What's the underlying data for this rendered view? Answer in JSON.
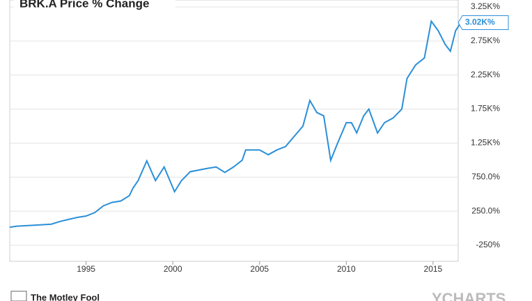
{
  "chart_data": {
    "type": "line",
    "title": "BRK.A Price % Change",
    "x": [
      1990.6,
      1991,
      1992,
      1993,
      1993.5,
      1994,
      1994.5,
      1995,
      1995.5,
      1996,
      1996.5,
      1997,
      1997.5,
      1997.7,
      1998,
      1998.5,
      1999,
      1999.5,
      2000.1,
      2000.5,
      2001,
      2002,
      2002.5,
      2003,
      2003.5,
      2004,
      2004.2,
      2005,
      2005.5,
      2006,
      2006.5,
      2007,
      2007.5,
      2007.9,
      2008.3,
      2008.7,
      2009.1,
      2009.5,
      2010,
      2010.3,
      2010.6,
      2011,
      2011.3,
      2011.8,
      2012.2,
      2012.7,
      2013.2,
      2013.5,
      2014,
      2014.5,
      2014.9,
      2015.3,
      2015.7,
      2016,
      2016.3,
      2016.6
    ],
    "series": [
      {
        "name": "BRK.A",
        "color": "#2a8fd8",
        "values": [
          15,
          30,
          45,
          60,
          100,
          130,
          160,
          180,
          230,
          330,
          380,
          400,
          480,
          588,
          700,
          990,
          700,
          900,
          537,
          700,
          830,
          880,
          900,
          820,
          900,
          1000,
          1150,
          1150,
          1080,
          1150,
          1200,
          1350,
          1500,
          1876,
          1700,
          1650,
          997,
          1250,
          1550,
          1550,
          1400,
          1650,
          1750,
          1400,
          1550,
          1620,
          1750,
          2200,
          2400,
          2500,
          3040,
          2900,
          2700,
          2600,
          2900,
          3020
        ]
      }
    ],
    "last_value_label": "3.02K%",
    "xlim": [
      1990.6,
      2016.45
    ],
    "xticks": [
      1995,
      2000,
      2005,
      2010,
      2015
    ],
    "ylim": [
      -485,
      3352
    ],
    "yticks": [
      {
        "value": -250,
        "label": "-250%"
      },
      {
        "value": 250,
        "label": "250.0%"
      },
      {
        "value": 750,
        "label": "750.0%"
      },
      {
        "value": 1250,
        "label": "1.25K%"
      },
      {
        "value": 1750,
        "label": "1.75K%"
      },
      {
        "value": 2250,
        "label": "2.25K%"
      },
      {
        "value": 2750,
        "label": "2.75K%"
      },
      {
        "value": 3250,
        "label": "3.25K%"
      }
    ],
    "grid": true,
    "footer_left": "The Motley Fool",
    "footer_right": "YCHARTS"
  }
}
